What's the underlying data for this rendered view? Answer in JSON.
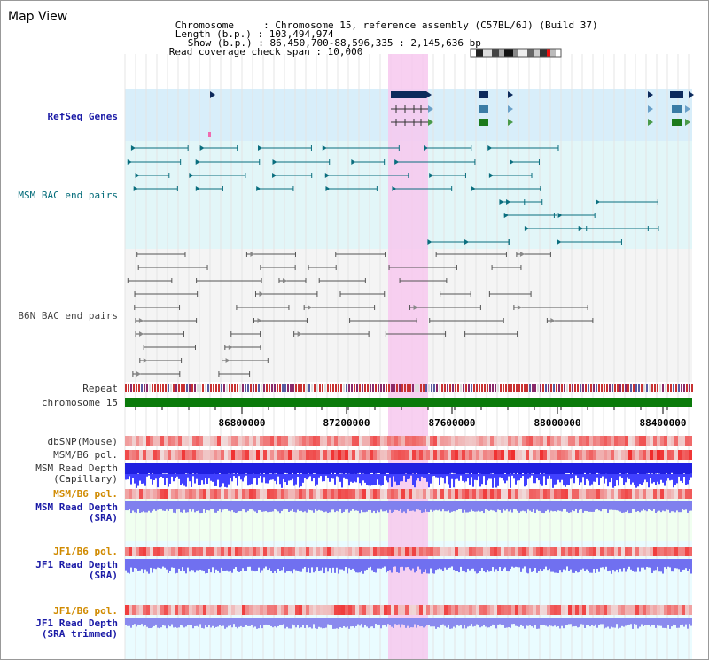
{
  "window": {
    "title": "Map View"
  },
  "info": {
    "chromosome_label": "Chromosome",
    "chromosome_value": "Chromosome 15, reference assembly (C57BL/6J) (Build 37)",
    "length_label": "Length (b.p.)",
    "length_value": "103,494,974",
    "show_label": "Show (b.p.)",
    "show_value": "86,450,700-88,596,335 : 2,145,636 bp",
    "read_coverage_label": "Read coverage check span",
    "read_coverage_value": "10,000"
  },
  "tracks": {
    "refseq_genes": "RefSeq Genes",
    "msm_bac": "MSM BAC end pairs",
    "b6n_bac": "B6N BAC end pairs",
    "repeat": "Repeat",
    "chromosome": "chromosome 15",
    "dbsnp": "dbSNP(Mouse)",
    "msm_b6_pol_1": "MSM/B6 pol.",
    "msm_read_depth_cap_1": "MSM Read Depth",
    "msm_read_depth_cap_2": "(Capillary)",
    "msm_b6_pol_2": "MSM/B6 pol.",
    "msm_read_depth_sra_1": "MSM Read Depth",
    "msm_read_depth_sra_2": "(SRA)",
    "jf1_b6_pol_1": "JF1/B6 pol.",
    "jf1_read_depth_sra_1": "JF1 Read Depth",
    "jf1_read_depth_sra_2": "(SRA)",
    "jf1_b6_pol_2": "JF1/B6 pol.",
    "jf1_read_depth_trim_1": "JF1 Read Depth",
    "jf1_read_depth_trim_2": "(SRA trimmed)"
  },
  "axis": {
    "ticks": [
      "86800000",
      "87200000",
      "87600000",
      "88000000",
      "88400000"
    ]
  },
  "colors": {
    "highlight": "#f7c8ee",
    "refseq_bg": "#d8eefa",
    "msm_bg": "#e2f6f8",
    "chrom_bar": "#0a7a0a",
    "gene_dark": "#0d2a5c",
    "msm_pair": "#0a6e7e",
    "b6n_pair": "#555555"
  }
}
